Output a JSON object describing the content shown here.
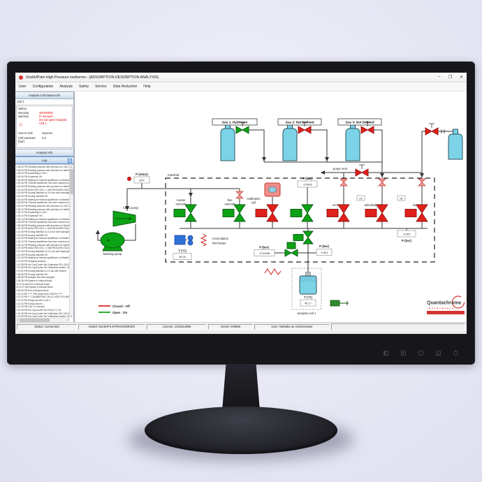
{
  "window": {
    "title": "iSorbHPsim High Pressure Isotherms - [ADSORPTION-DESORPTION ANALYSIS]",
    "minimize": "–",
    "maximize": "❐",
    "close": "✕"
  },
  "menu": {
    "items": [
      "User",
      "Configuration",
      "Analysis",
      "Safety",
      "Service",
      "Data Reduction",
      "Help"
    ]
  },
  "status_panel": {
    "header": "Analysis Cell Status Info",
    "cell_tab": "Cell 1",
    "status_label": "Status",
    "security_label": "Security warning",
    "warning_icon": "⚠",
    "warning_lines": [
      "WARNING",
      "In Vacuum",
      "Do not open Analysis Cell 1"
    ],
    "gas_in_cell_label": "Gas in Cell",
    "gas_in_cell_value": "Vacuum",
    "cell_pressure_label": "Cell pressure (bar)",
    "cell_pressure_value": "0.0"
  },
  "analysis_info_header": "Analysis Info",
  "log": {
    "header": "Log",
    "entries": [
      "1:18:02 PM Reading pressure with precision on Cell 1: 10.53",
      "1:18:04 PM Reading pressure with precision on Manifold: 11.49",
      "1:18:04 PM Expanding to Cell 1",
      "1:18:04 PM Expansion OK",
      "1:18:05 PM Waiting for thermal equilibrium on Manifold",
      "1:20:26 PM Thermal equilibrium has been reached on Manifold",
      "1:20:26 PM Reading pressure with precision on Manifold: 10.71",
      "1:24:34 PM ANALYSIS CELL 1 HAS REACHED EQUILIBRIUM",
      "1:24:35 PM Dosing Manifold to 11.5 bar with Hydrogen",
      "1:24:42 PM Dosing manifold OK",
      "1:24:42 PM Waiting for thermal equilibrium on Manifold",
      "1:26:05 PM Thermal equilibrium has been reached on Manifold",
      "1:26:10 PM Reading pressure with precision on Cell 1: 10.34",
      "1:26:12 PM Reading pressure with precision on Manifold: 11.52",
      "1:26:12 PM Expanding to Cell 1",
      "1:26:12 PM Expansion OK",
      "1:26:13 PM Waiting for thermal equilibrium on Manifold",
      "1:28:45 PM Thermal equilibrium has been reached on Manifold",
      "1:28:45 PM Reading pressure with precision on Manifold: 10.88",
      "1:31:29 PM ANALYSIS CELL 1 HAS REACHED EQUILIBRIUM",
      "1:31:30 PM Dosing Manifold to 11.8 bar with Hydrogen",
      "1:31:30 PM Dosing manifold OK",
      "1:31:30 PM Waiting for thermal equilibrium on Manifold",
      "1:33:12 PM Thermal equilibrium has been reached on Manifold",
      "1:33:12 PM Reading pressure with precision on Manifold: 11.21",
      "1:37:25 PM ANALYSIS CELL 1 HAS REACHED EQUILIBRIUM",
      "1:37:25 PM Dosing Manifold to 12.1 bar with Hydrogen",
      "1:37:26 PM Dosing manifold OK",
      "1:37:43 PM Waiting for thermal equilibrium on Manifold",
      "1:37:50 PM Stopping analysis ...",
      "1:37:50 PM He-CryoCooler Set Calibration PID: [30,25,0]",
      "1:37:50 PM He-CryoCooler Set Calibration Heater: HIGH",
      "1:37:51 PM Dosing Manifold to 1.0 bar with Helium",
      "1:38:36 PM Dosing manifold OK",
      "1:38:36 PM Analysis has been stopped",
      "1:38:36 PM System in Manual Mode",
      "11:37:24 AM End of Manual Mode",
      "11:37:27 AM System in Manual Mode",
      "1:09:03 PM End of Manual Mode",
      "1:12:11 PM ***** THE ANALYSIS STARTS *****",
      "1:12:11 PM *** CALIBRATING CELLS VOID VOLUME ***",
      "1:12:11 PM Doing vacuum in cell 1",
      "1:12:12 PM Doing vacuum ...",
      "1:12:13 PM Cell 1 in Vacuum",
      "1:12:25 PM He-CryoCooler Set Point (°C): 45",
      "1:12:25 PM He-CryoCooler Set Calibration PID: [30,25,0]",
      "1:12:25 PM He-CryoCooler Set Calibration Heater: HIGH",
      "1:12:26 PM Manifold temperature controlled and stable at 45",
      "1:12:26 PM Waiting to control Analysis Cell 1 temperature to 45"
    ]
  },
  "statusbar": {
    "status": "Status: Connected",
    "model": "Model: iSorbHP1-BTRHGDMR200",
    "license": "License: 1019114865",
    "serial": "Serial: H29885",
    "user": "User: Nathalia as Administrator"
  },
  "diagram": {
    "gas1_label": "Gas 1: Hydrogen",
    "gas2_label": "Gas 2: Not Defined",
    "gas3_label": "Gas 3: Not Defined",
    "purge_vent": "purge vent",
    "manifold": "manifold",
    "p_mbar_label": "P (mbar)",
    "p_mbar_value": "OFF",
    "turbo_pump": "turbo pump",
    "backing_pump": "backing pump",
    "coarse_vacuum": [
      "coarse",
      "vacuum"
    ],
    "fine_vacuum": [
      "fine",
      "vacuum"
    ],
    "calibration_cell": [
      "calibration",
      "cell"
    ],
    "p_bar_label": "P (bar)",
    "p_manifold_value": "-0.0003",
    "vent_label": "vent",
    "adsorbate_label": "adsorbate",
    "adsorbate_gas": "H2",
    "inert_label": "inert",
    "inert_gas": "N2",
    "p_right_value": "-0.002",
    "p_right_label": "P (bar)",
    "recirculation": [
      "recirculation",
      "fan-heater"
    ],
    "t_manifold_label": "T (°C)",
    "t_manifold_value": "45.00",
    "p_relief_label": "P (bar)",
    "p_relief_value": "-0.00098",
    "p_cell_label": "P (bar)",
    "p_cell_value": "-0.001",
    "t_cell_label": "T (°C)",
    "t_cell_value": "45.17",
    "analysis_cell_label": "analysis cell 1",
    "legend_closed": "Closed : Off",
    "legend_open": "Open : On",
    "logo_name": "Quantachrome",
    "logo_sub": "INSTRUMENTS"
  },
  "colors": {
    "open_green": "#0ca215",
    "closed_red": "#e0201c",
    "check_pink": "#f09a96",
    "cylinder_cyan": "#7cd3e8",
    "fan_blue": "#2f6fd6",
    "warning_red": "#e00000",
    "logo_red": "#d43530"
  }
}
